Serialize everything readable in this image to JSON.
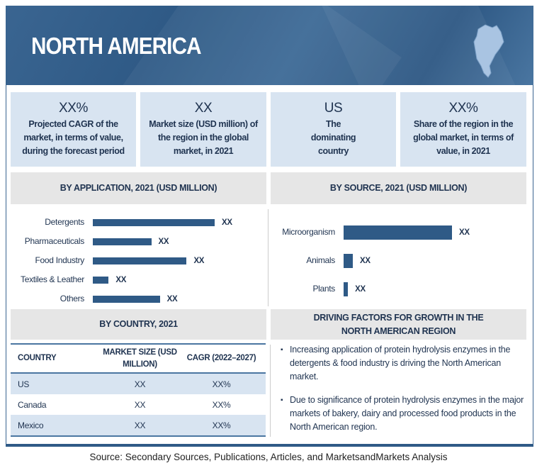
{
  "header": {
    "title": "NORTH AMERICA",
    "map_icon": "north-america-map-icon"
  },
  "kpis": [
    {
      "value": "XX%",
      "label": "Projected CAGR of the market, in terms of value, during the forecast period"
    },
    {
      "value": "XX",
      "label": "Market size (USD million) of the region in the global market, in 2021"
    },
    {
      "value": "US",
      "label": "The dominating country"
    },
    {
      "value": "XX%",
      "label": "Share of the region in the global market, in terms of value, in 2021"
    }
  ],
  "chart_data": [
    {
      "type": "bar",
      "orientation": "horizontal",
      "title": "BY APPLICATION, 2021 (USD MILLION)",
      "categories": [
        "Detergents",
        "Pharmaceuticals",
        "Food Industry",
        "Textiles & Leather",
        "Others"
      ],
      "values": [
        1.0,
        0.48,
        0.77,
        0.13,
        0.55
      ],
      "value_unit": "relative to largest",
      "data_labels": [
        "XX",
        "XX",
        "XX",
        "XX",
        "XX"
      ]
    },
    {
      "type": "bar",
      "orientation": "horizontal",
      "title": "BY SOURCE, 2021 (USD MILLION)",
      "categories": [
        "Microorganism",
        "Animals",
        "Plants"
      ],
      "values": [
        1.0,
        0.085,
        0.04
      ],
      "value_unit": "relative to largest",
      "data_labels": [
        "XX",
        "XX",
        "XX"
      ]
    }
  ],
  "country": {
    "title": "BY COUNTRY, 2021",
    "headers": [
      "COUNTRY",
      "MARKET SIZE (USD MILLION)",
      "CAGR (2022–2027)"
    ],
    "rows": [
      [
        "US",
        "XX",
        "XX%"
      ],
      [
        "Canada",
        "XX",
        "XX%"
      ],
      [
        "Mexico",
        "XX",
        "XX%"
      ]
    ]
  },
  "drivers": {
    "title": "DRIVING FACTORS FOR GROWTH IN THE NORTH AMERICAN REGION",
    "items": [
      "Increasing application of protein hydrolysis enzymes in the detergents & food industry is driving the North American market.",
      "Due to significance of protein hydrolysis enzymes in the major markets of bakery, dairy and processed food products in the North American region."
    ]
  },
  "colors": {
    "primary": "#2f5a86",
    "light": "#d8e4f1",
    "section": "#e6e6e6"
  },
  "source": "Source: Secondary Sources, Publications, Articles, and MarketsandMarkets Analysis"
}
